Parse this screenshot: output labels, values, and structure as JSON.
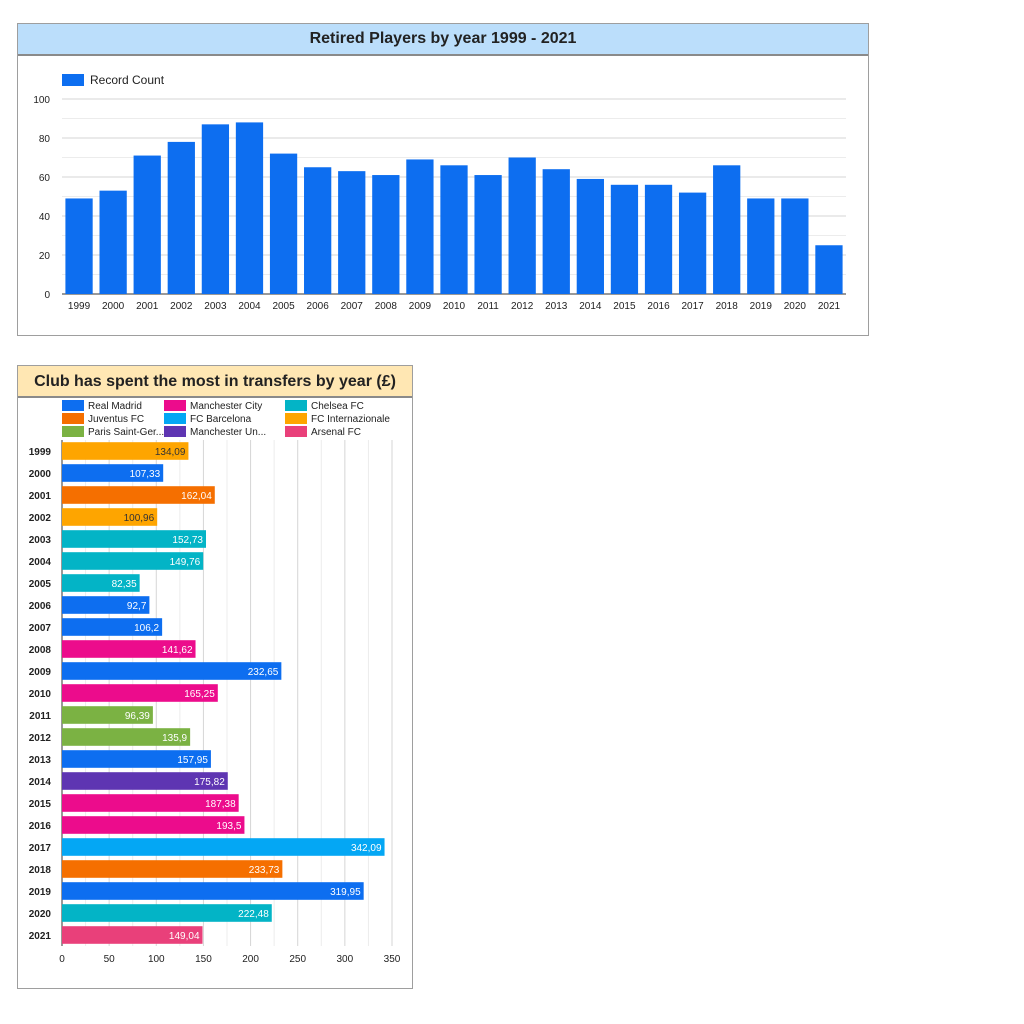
{
  "charts": {
    "retired": {
      "title": "Retired Players by year 1999 - 2021",
      "title_bg": "#bbdefb",
      "bar_color": "#0d6ef0"
    },
    "transfers": {
      "title": "Club has spent the most in transfers by year (£)",
      "title_bg": "#ffe7b3"
    }
  },
  "chart_data": [
    {
      "type": "bar",
      "title": "Retired Players by year 1999 - 2021",
      "series": [
        {
          "name": "Record Count",
          "color": "#0d6ef0",
          "values": [
            49,
            53,
            71,
            78,
            87,
            88,
            72,
            65,
            63,
            61,
            69,
            66,
            61,
            70,
            64,
            59,
            56,
            56,
            52,
            66,
            49,
            49,
            25
          ]
        }
      ],
      "categories": [
        "1999",
        "2000",
        "2001",
        "2002",
        "2003",
        "2004",
        "2005",
        "2006",
        "2007",
        "2008",
        "2009",
        "2010",
        "2011",
        "2012",
        "2013",
        "2014",
        "2015",
        "2016",
        "2017",
        "2018",
        "2019",
        "2020",
        "2021"
      ],
      "ylim": [
        0,
        100
      ],
      "yticks": [
        0,
        20,
        40,
        60,
        80,
        100
      ],
      "grid": true,
      "legend": "top-left"
    },
    {
      "type": "bar",
      "orientation": "horizontal",
      "title": "Club has spent the most in transfers by year (£)",
      "legend": "top",
      "clubs": [
        {
          "name": "Real Madrid",
          "color": "#0d6ef0"
        },
        {
          "name": "Manchester City",
          "color": "#ec0c8c"
        },
        {
          "name": "Chelsea FC",
          "color": "#03b4c6"
        },
        {
          "name": "Juventus FC",
          "color": "#f56f00"
        },
        {
          "name": "FC Barcelona",
          "color": "#04a7f4"
        },
        {
          "name": "FC Internazionale",
          "color": "#fea500"
        },
        {
          "name": "Paris Saint-Ger...",
          "color": "#7bb243"
        },
        {
          "name": "Manchester Un...",
          "color": "#5e35b2"
        },
        {
          "name": "Arsenal FC",
          "color": "#e9407a"
        }
      ],
      "rows": [
        {
          "year": "1999",
          "value": 134.09,
          "label": "134,09",
          "club": "FC Internazionale"
        },
        {
          "year": "2000",
          "value": 107.33,
          "label": "107,33",
          "club": "Real Madrid"
        },
        {
          "year": "2001",
          "value": 162.04,
          "label": "162,04",
          "club": "Juventus FC"
        },
        {
          "year": "2002",
          "value": 100.96,
          "label": "100,96",
          "club": "FC Internazionale"
        },
        {
          "year": "2003",
          "value": 152.73,
          "label": "152,73",
          "club": "Chelsea FC"
        },
        {
          "year": "2004",
          "value": 149.76,
          "label": "149,76",
          "club": "Chelsea FC"
        },
        {
          "year": "2005",
          "value": 82.35,
          "label": "82,35",
          "club": "Chelsea FC"
        },
        {
          "year": "2006",
          "value": 92.7,
          "label": "92,7",
          "club": "Real Madrid"
        },
        {
          "year": "2007",
          "value": 106.2,
          "label": "106,2",
          "club": "Real Madrid"
        },
        {
          "year": "2008",
          "value": 141.62,
          "label": "141,62",
          "club": "Manchester City"
        },
        {
          "year": "2009",
          "value": 232.65,
          "label": "232,65",
          "club": "Real Madrid"
        },
        {
          "year": "2010",
          "value": 165.25,
          "label": "165,25",
          "club": "Manchester City"
        },
        {
          "year": "2011",
          "value": 96.39,
          "label": "96,39",
          "club": "Paris Saint-Ger..."
        },
        {
          "year": "2012",
          "value": 135.9,
          "label": "135,9",
          "club": "Paris Saint-Ger..."
        },
        {
          "year": "2013",
          "value": 157.95,
          "label": "157,95",
          "club": "Real Madrid"
        },
        {
          "year": "2014",
          "value": 175.82,
          "label": "175,82",
          "club": "Manchester Un..."
        },
        {
          "year": "2015",
          "value": 187.38,
          "label": "187,38",
          "club": "Manchester City"
        },
        {
          "year": "2016",
          "value": 193.5,
          "label": "193,5",
          "club": "Manchester City"
        },
        {
          "year": "2017",
          "value": 342.09,
          "label": "342,09",
          "club": "FC Barcelona"
        },
        {
          "year": "2018",
          "value": 233.73,
          "label": "233,73",
          "club": "Juventus FC"
        },
        {
          "year": "2019",
          "value": 319.95,
          "label": "319,95",
          "club": "Real Madrid"
        },
        {
          "year": "2020",
          "value": 222.48,
          "label": "222,48",
          "club": "Chelsea FC"
        },
        {
          "year": "2021",
          "value": 149.04,
          "label": "149,04",
          "club": "Arsenal FC"
        }
      ],
      "xlim": [
        0,
        350
      ],
      "xticks": [
        0,
        50,
        100,
        150,
        200,
        250,
        300,
        350
      ],
      "grid": true
    }
  ]
}
